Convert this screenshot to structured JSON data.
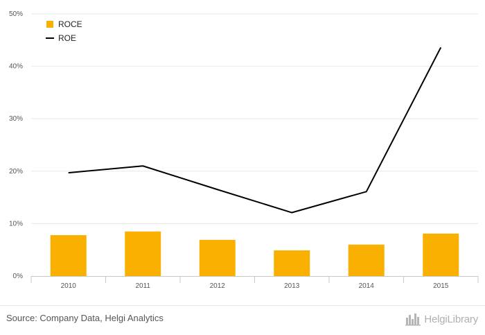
{
  "chart_data": {
    "type": "bar+line",
    "categories": [
      "2010",
      "2011",
      "2012",
      "2013",
      "2014",
      "2015"
    ],
    "series": [
      {
        "name": "ROCE",
        "type": "bar",
        "color": "#F9B000",
        "values": [
          7.8,
          8.5,
          6.9,
          4.9,
          6.0,
          8.1
        ]
      },
      {
        "name": "ROE",
        "type": "line",
        "color": "#000000",
        "values": [
          19.7,
          21.0,
          16.5,
          12.1,
          16.1,
          43.6
        ]
      }
    ],
    "y_ticks": [
      "0%",
      "10%",
      "20%",
      "30%",
      "40%",
      "50%"
    ],
    "ylim": [
      0,
      50
    ],
    "grid": true,
    "legend_position": "top-left",
    "title": "",
    "xlabel": "",
    "ylabel": ""
  },
  "footer": {
    "source": "Source: Company Data, Helgi Analytics",
    "logo_text": "HelgiLibrary"
  }
}
